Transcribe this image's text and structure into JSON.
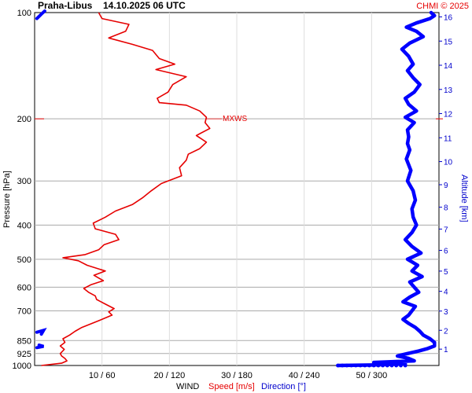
{
  "header": {
    "station": "Praha-Libus",
    "datetime": "14.10.2025 06 UTC",
    "credit": "CHMI © 2025"
  },
  "chart_data": {
    "type": "line",
    "title": "Praha-Libus 14.10.2025 06 UTC",
    "ylabel": "Pressure [hPa]",
    "ylabel_right": "Altitude [km]",
    "xlabel_parts": [
      "WIND",
      "Speed [m/s]",
      "Direction [°]"
    ],
    "y_scale": "log-pressure",
    "ylim": [
      1000,
      100
    ],
    "y_ticks": [
      100,
      200,
      300,
      400,
      500,
      600,
      700,
      850,
      925,
      1000
    ],
    "alt_ticks": [
      1,
      2,
      3,
      4,
      5,
      6,
      7,
      8,
      9,
      10,
      11,
      12,
      13,
      14,
      15,
      16
    ],
    "x_ticks": [
      {
        "speed": 10,
        "direction": 60,
        "label": "10 / 60"
      },
      {
        "speed": 20,
        "direction": 120,
        "label": "20 / 120"
      },
      {
        "speed": 30,
        "direction": 180,
        "label": "30 / 180"
      },
      {
        "speed": 40,
        "direction": 240,
        "label": "40 / 240"
      },
      {
        "speed": 50,
        "direction": 300,
        "label": "50 / 300"
      }
    ],
    "xlim_speed": [
      0,
      60
    ],
    "xlim_direction": [
      0,
      360
    ],
    "grid": true,
    "annotation": {
      "text": "MXWS",
      "pressure": 200,
      "speed": 25.5
    },
    "series": [
      {
        "name": "Speed [m/s]",
        "color": "#e60000",
        "points": [
          [
            1000,
            1.0
          ],
          [
            985,
            4.0
          ],
          [
            970,
            4.8
          ],
          [
            955,
            4.5
          ],
          [
            940,
            4.0
          ],
          [
            925,
            3.8
          ],
          [
            900,
            4.4
          ],
          [
            880,
            3.8
          ],
          [
            860,
            4.5
          ],
          [
            840,
            4.2
          ],
          [
            820,
            5.2
          ],
          [
            800,
            6.0
          ],
          [
            780,
            7.0
          ],
          [
            760,
            8.5
          ],
          [
            740,
            10.0
          ],
          [
            720,
            11.5
          ],
          [
            705,
            11.0
          ],
          [
            690,
            11.8
          ],
          [
            670,
            10.5
          ],
          [
            650,
            9.2
          ],
          [
            635,
            9.0
          ],
          [
            620,
            8.0
          ],
          [
            605,
            7.3
          ],
          [
            590,
            8.4
          ],
          [
            575,
            10.2
          ],
          [
            555,
            8.8
          ],
          [
            540,
            10.5
          ],
          [
            520,
            7.8
          ],
          [
            505,
            6.5
          ],
          [
            495,
            4.2
          ],
          [
            485,
            7.5
          ],
          [
            470,
            9.5
          ],
          [
            455,
            10.3
          ],
          [
            440,
            12.5
          ],
          [
            425,
            12.0
          ],
          [
            410,
            9.0
          ],
          [
            395,
            8.7
          ],
          [
            380,
            10.5
          ],
          [
            365,
            12.0
          ],
          [
            350,
            14.5
          ],
          [
            335,
            16.0
          ],
          [
            320,
            17.3
          ],
          [
            305,
            18.8
          ],
          [
            290,
            21.8
          ],
          [
            275,
            21.5
          ],
          [
            262,
            22.5
          ],
          [
            252,
            22.8
          ],
          [
            243,
            24.5
          ],
          [
            233,
            25.5
          ],
          [
            223,
            24.0
          ],
          [
            213,
            26.0
          ],
          [
            205,
            25.3
          ],
          [
            198,
            25.5
          ],
          [
            190,
            24.5
          ],
          [
            183,
            22.5
          ],
          [
            180,
            18.5
          ],
          [
            175,
            18.2
          ],
          [
            168,
            19.8
          ],
          [
            160,
            20.5
          ],
          [
            152,
            22.5
          ],
          [
            145,
            18.0
          ],
          [
            140,
            20.8
          ],
          [
            135,
            18.5
          ],
          [
            128,
            17.5
          ],
          [
            123,
            14.5
          ],
          [
            118,
            11.0
          ],
          [
            113,
            13.5
          ],
          [
            108,
            14.0
          ],
          [
            104,
            10.0
          ],
          [
            100,
            9.5
          ]
        ]
      },
      {
        "name": "Direction [°]",
        "color": "#0000ff",
        "points": [
          [
            1000,
            270
          ],
          [
            997,
            300
          ],
          [
            990,
            330
          ],
          [
            980,
            302
          ],
          [
            970,
            338
          ],
          [
            955,
            333
          ],
          [
            940,
            323
          ],
          [
            925,
            332
          ],
          [
            910,
            342
          ],
          [
            895,
            350
          ],
          [
            880,
            356
          ],
          [
            860,
            356
          ],
          [
            840,
            352
          ],
          [
            820,
            346
          ],
          [
            800,
            343
          ],
          [
            780,
            339
          ],
          [
            760,
            333
          ],
          [
            740,
            328
          ],
          [
            720,
            333
          ],
          [
            700,
            336
          ],
          [
            680,
            339
          ],
          [
            660,
            328
          ],
          [
            640,
            334
          ],
          [
            620,
            342
          ],
          [
            600,
            338
          ],
          [
            580,
            334
          ],
          [
            560,
            345
          ],
          [
            540,
            336
          ],
          [
            520,
            341
          ],
          [
            500,
            332
          ],
          [
            480,
            344
          ],
          [
            460,
            336
          ],
          [
            440,
            330
          ],
          [
            420,
            336
          ],
          [
            400,
            340
          ],
          [
            380,
            337
          ],
          [
            360,
            336
          ],
          [
            340,
            339
          ],
          [
            320,
            337
          ],
          [
            300,
            332
          ],
          [
            280,
            335
          ],
          [
            260,
            331
          ],
          [
            245,
            334
          ],
          [
            235,
            332
          ],
          [
            225,
            333
          ],
          [
            215,
            332
          ],
          [
            205,
            338
          ],
          [
            198,
            330
          ],
          [
            190,
            340
          ],
          [
            182,
            333
          ],
          [
            175,
            330
          ],
          [
            168,
            338
          ],
          [
            160,
            343
          ],
          [
            153,
            337
          ],
          [
            146,
            332
          ],
          [
            140,
            337
          ],
          [
            133,
            333
          ],
          [
            127,
            327
          ],
          [
            122,
            334
          ],
          [
            117,
            346
          ],
          [
            113,
            340
          ],
          [
            110,
            331
          ],
          [
            107,
            340
          ],
          [
            104,
            352
          ],
          [
            102,
            356
          ],
          [
            100,
            353
          ]
        ]
      },
      {
        "name": "Direction [°] (surface marks)",
        "color": "#0000ff",
        "points": [
          [
            890,
            2
          ],
          [
            883,
            8
          ],
          [
            875,
            4
          ],
          [
            805,
            2
          ],
          [
            795,
            8
          ],
          [
            815,
            6
          ]
        ]
      }
    ]
  }
}
